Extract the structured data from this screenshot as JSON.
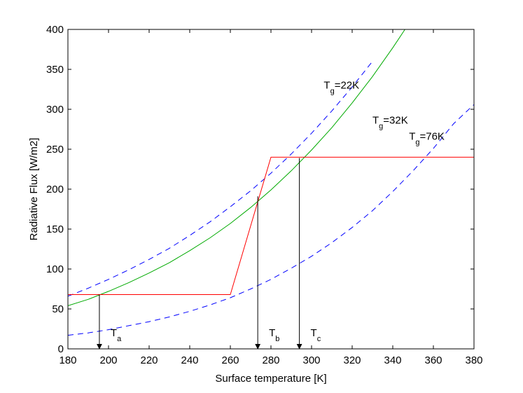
{
  "chart_data": {
    "type": "line",
    "xlabel": "Surface temperature [K]",
    "ylabel": "Radiative Flux [W/m2]",
    "xlim": [
      180,
      380
    ],
    "ylim": [
      0,
      400
    ],
    "xticks": [
      180,
      200,
      220,
      240,
      260,
      280,
      300,
      320,
      340,
      360,
      380
    ],
    "yticks": [
      0,
      50,
      100,
      150,
      200,
      250,
      300,
      350,
      400
    ],
    "grid": false,
    "series": [
      {
        "color": "#0000ff",
        "style": "dashed",
        "x": [
          180,
          190,
          200,
          210,
          220,
          230,
          240,
          250,
          260,
          270,
          280,
          290,
          300,
          310,
          320,
          330
        ],
        "y": [
          66,
          76,
          87,
          99,
          112,
          126,
          142,
          159,
          178,
          198,
          220,
          244,
          270,
          298,
          328,
          360
        ]
      },
      {
        "color": "#00aa00",
        "style": "solid",
        "x": [
          180,
          190,
          200,
          210,
          220,
          230,
          240,
          250,
          260,
          270,
          280,
          290,
          300,
          310,
          320,
          330,
          340,
          346
        ],
        "y": [
          54,
          62,
          72,
          83,
          95,
          108,
          123,
          139,
          157,
          177,
          199,
          223,
          249,
          277,
          308,
          341,
          377,
          400
        ]
      },
      {
        "color": "#0000ff",
        "style": "dashed",
        "x": [
          180,
          190,
          200,
          210,
          220,
          230,
          240,
          250,
          260,
          270,
          280,
          290,
          300,
          310,
          320,
          330,
          340,
          350,
          360,
          370,
          380
        ],
        "y": [
          17,
          20,
          24,
          29,
          34,
          40,
          47,
          55,
          64,
          75,
          87,
          101,
          116,
          133,
          152,
          173,
          197,
          223,
          251,
          282,
          306
        ]
      },
      {
        "color": "#ff0000",
        "style": "solid",
        "x": [
          180,
          260,
          280,
          380
        ],
        "y": [
          68,
          68,
          240,
          240
        ]
      }
    ],
    "arrows": [
      {
        "x": 195.5,
        "y_from": 68,
        "y_to": 0
      },
      {
        "x": 273.5,
        "y_from": 191,
        "y_to": 0
      },
      {
        "x": 294,
        "y_from": 239,
        "y_to": 0
      }
    ],
    "annotations": [
      {
        "main": "T",
        "sub": "g",
        "rest": "=22K",
        "x": 306,
        "y": 326
      },
      {
        "main": "T",
        "sub": "g",
        "rest": "=32K",
        "x": 330,
        "y": 282
      },
      {
        "main": "T",
        "sub": "g",
        "rest": "=76K",
        "x": 348,
        "y": 262
      },
      {
        "main": "T",
        "sub": "a",
        "rest": "",
        "x": 201,
        "y": 16
      },
      {
        "main": "T",
        "sub": "b",
        "rest": "",
        "x": 279,
        "y": 16
      },
      {
        "main": "T",
        "sub": "c",
        "rest": "",
        "x": 299.5,
        "y": 16
      }
    ]
  }
}
